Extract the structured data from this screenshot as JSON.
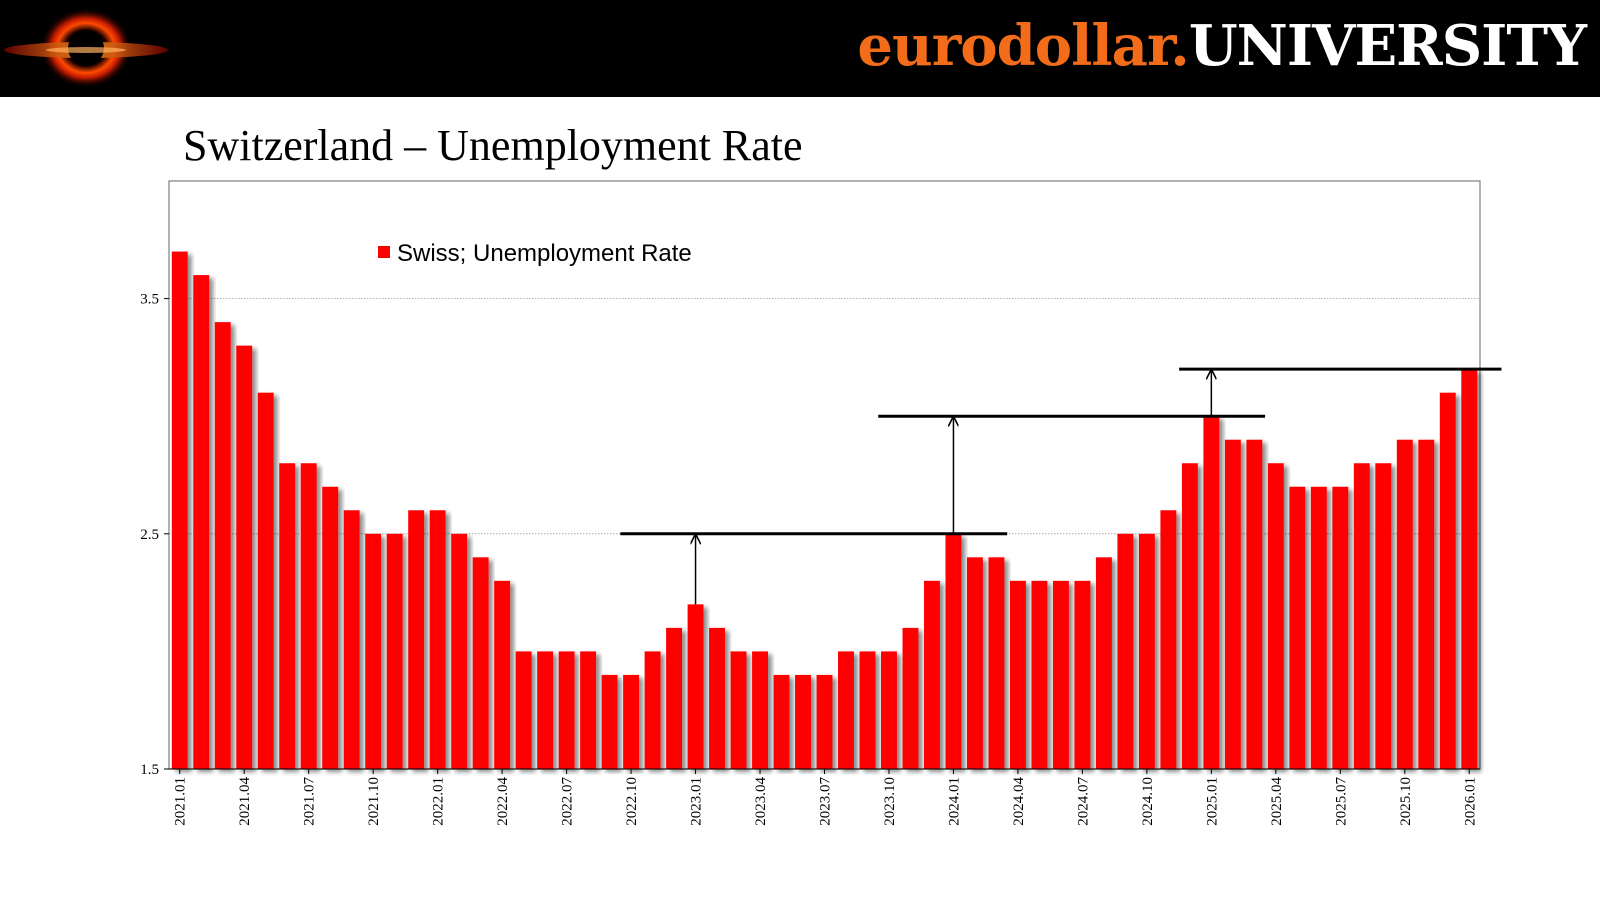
{
  "header": {
    "brand_part1": "eurodollar.",
    "brand_part2": "UNIVERSITY",
    "logo_icon": "black-hole-logo-icon"
  },
  "chart_title": "Switzerland – Unemployment Rate",
  "colors": {
    "bar": "#ff0000",
    "header_bg": "#000000",
    "brand_orange": "#f36c1a"
  },
  "chart_data": {
    "type": "bar",
    "title": "Switzerland – Unemployment Rate",
    "xlabel": "",
    "ylabel": "",
    "ylim": [
      1.5,
      4.0
    ],
    "yticks": [
      "1.5",
      "2.5",
      "3.5"
    ],
    "grid": "horizontal dotted at 2.5 and 3.5",
    "legend": {
      "label": "Swiss; Unemployment Rate",
      "placement": "top-left"
    },
    "series": [
      {
        "name": "Swiss; Unemployment Rate",
        "values": [
          3.7,
          3.6,
          3.4,
          3.3,
          3.1,
          2.8,
          2.8,
          2.7,
          2.6,
          2.5,
          2.5,
          2.6,
          2.6,
          2.5,
          2.4,
          2.3,
          2.0,
          2.0,
          2.0,
          2.0,
          1.9,
          1.9,
          2.0,
          2.1,
          2.2,
          2.1,
          2.0,
          2.0,
          1.9,
          1.9,
          1.9,
          2.0,
          2.0,
          2.0,
          2.1,
          2.3,
          2.5,
          2.4,
          2.4,
          2.3,
          2.3,
          2.3,
          2.3,
          2.4,
          2.5,
          2.5,
          2.6,
          2.8,
          3.0,
          2.9,
          2.9,
          2.8,
          2.7,
          2.7,
          2.7,
          2.8,
          2.8,
          2.9,
          2.9,
          3.1,
          3.2
        ]
      }
    ],
    "tick_labels": [
      "2021.01",
      "2021.04",
      "2021.07",
      "2021.10",
      "2022.01",
      "2022.04",
      "2022.07",
      "2022.10",
      "2023.01",
      "2023.04",
      "2023.07",
      "2023.10",
      "2024.01",
      "2024.04",
      "2024.07",
      "2024.10",
      "2025.01",
      "2025.04",
      "2025.07",
      "2025.10",
      "2026.01"
    ],
    "annotations": [
      {
        "type": "level-line",
        "y": 2.5,
        "from": "2022.10",
        "to": "2024.03"
      },
      {
        "type": "arrow",
        "at": "2023.01",
        "from_y": 2.2,
        "to_y": 2.5
      },
      {
        "type": "level-line",
        "y": 3.0,
        "from": "2023.10",
        "to": "2025.03"
      },
      {
        "type": "arrow",
        "at": "2024.01",
        "from_y": 2.5,
        "to_y": 3.0
      },
      {
        "type": "level-line",
        "y": 3.2,
        "from": "2024.12",
        "to": "2026.02"
      },
      {
        "type": "arrow",
        "at": "2025.01",
        "from_y": 3.0,
        "to_y": 3.2
      }
    ]
  }
}
